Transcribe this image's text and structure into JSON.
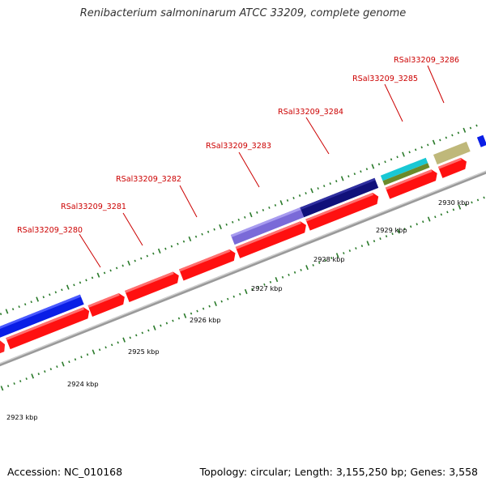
{
  "title": "Renibacterium salmoninarum ATCC 33209, complete genome",
  "footer": {
    "accession": "Accession: NC_010168",
    "info": "Topology: circular; Length: 3,155,250 bp; Genes: 3,558"
  },
  "colors": {
    "cds_fwd": "#ff0000",
    "gene_label": "#cc0000",
    "backbone": "#888888",
    "tick": "#2a7a2a",
    "blue_feature": "#0a1ee6",
    "navy_feature": "#10107a",
    "lavender_feature": "#7a6ad8",
    "cyan_feature": "#19c8d4",
    "olive_feature": "#6a8a2a",
    "khaki_feature": "#bfb87a"
  },
  "gene_labels": [
    "RSal33209_3280",
    "RSal33209_3281",
    "RSal33209_3282",
    "RSal33209_3283",
    "RSal33209_3284",
    "RSal33209_3285",
    "RSal33209_3286"
  ],
  "kbp_labels": [
    "2923 kbp",
    "2924 kbp",
    "2925 kbp",
    "2926 kbp",
    "2927 kbp",
    "2928 kbp",
    "2929 kbp",
    "2930 kbp"
  ]
}
